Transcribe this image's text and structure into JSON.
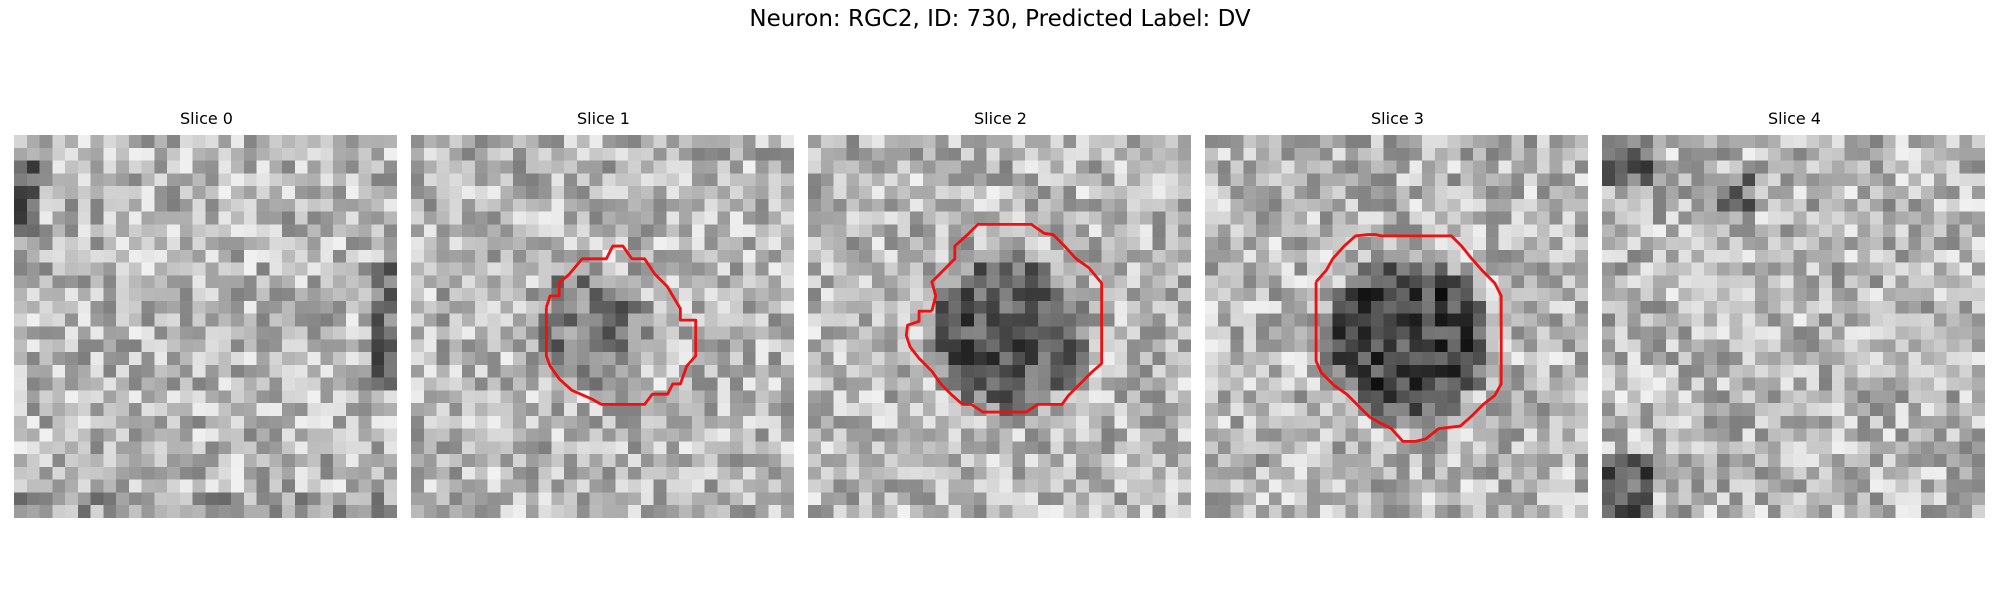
{
  "figure": {
    "title": "Neuron: RGC2, ID: 730, Predicted Label: DV",
    "outline_color": "#ee1111"
  },
  "panels": [
    {
      "title": "Slice 0",
      "has_outline": false,
      "dark_center_strength": 0.0,
      "description_icon": "grayscale-noise-image"
    },
    {
      "title": "Slice 1",
      "has_outline": true,
      "dark_center_strength": 0.45,
      "description_icon": "grayscale-noise-image"
    },
    {
      "title": "Slice 2",
      "has_outline": true,
      "dark_center_strength": 0.75,
      "description_icon": "grayscale-noise-image"
    },
    {
      "title": "Slice 3",
      "has_outline": true,
      "dark_center_strength": 0.9,
      "description_icon": "grayscale-noise-image"
    },
    {
      "title": "Slice 4",
      "has_outline": false,
      "dark_center_strength": 0.0,
      "description_icon": "grayscale-noise-image"
    }
  ]
}
